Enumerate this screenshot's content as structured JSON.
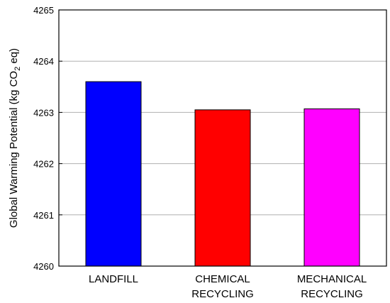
{
  "chart_data": {
    "type": "bar",
    "categories": [
      [
        "LANDFILL"
      ],
      [
        "CHEMICAL",
        "RECYCLING"
      ],
      [
        "MECHANICAL",
        "RECYCLING"
      ]
    ],
    "values": [
      4263.6,
      4263.05,
      4263.07
    ],
    "colors": [
      "#0000ff",
      "#ff0000",
      "#ff00ff"
    ],
    "ylabel": "Global Warming Potential (kg CO2 eq)",
    "ylabel_parts": {
      "before": "Global Warming Potential (kg CO",
      "sub": "2",
      "after": " eq)"
    },
    "xlabel": "",
    "ylim": [
      4260,
      4265
    ],
    "yticks": [
      4260,
      4261,
      4262,
      4263,
      4264,
      4265
    ],
    "grid": true
  }
}
